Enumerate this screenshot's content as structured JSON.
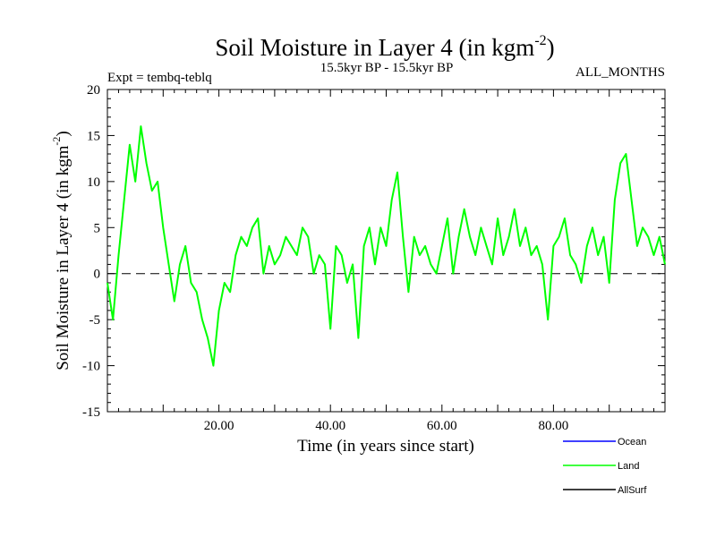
{
  "chart_data": {
    "type": "line",
    "title": "Soil Moisture in Layer 4 (in kgm",
    "title_sup": "-2",
    "title_close": ")",
    "subtitle": "15.5kyr BP - 15.5kyr BP",
    "expt_label": "Expt = tembq-teblq",
    "months_label": "ALL_MONTHS",
    "xlabel": "Time (in years since start)",
    "ylabel": "Soil Moisture in Layer 4 (in kgm",
    "ylabel_sup": "-2",
    "ylabel_close": ")",
    "xlim": [
      0,
      100
    ],
    "ylim": [
      -15,
      20
    ],
    "x_ticks": [
      20,
      40,
      60,
      80
    ],
    "x_tick_labels": [
      "20.00",
      "40.00",
      "60.00",
      "80.00"
    ],
    "y_ticks": [
      -15,
      -10,
      -5,
      0,
      5,
      10,
      15,
      20
    ],
    "y_tick_labels": [
      "-15",
      "-10",
      "-5",
      "0",
      "5",
      "10",
      "15",
      "20"
    ],
    "zero_line": true,
    "series": [
      {
        "name": "Land",
        "color": "#00ff00",
        "x": [
          0,
          1,
          2,
          3,
          4,
          5,
          6,
          7,
          8,
          9,
          10,
          11,
          12,
          13,
          14,
          15,
          16,
          17,
          18,
          19,
          20,
          21,
          22,
          23,
          24,
          25,
          26,
          27,
          28,
          29,
          30,
          31,
          32,
          33,
          34,
          35,
          36,
          37,
          38,
          39,
          40,
          41,
          42,
          43,
          44,
          45,
          46,
          47,
          48,
          49,
          50,
          51,
          52,
          53,
          54,
          55,
          56,
          57,
          58,
          59,
          60,
          61,
          62,
          63,
          64,
          65,
          66,
          67,
          68,
          69,
          70,
          71,
          72,
          73,
          74,
          75,
          76,
          77,
          78,
          79,
          80,
          81,
          82,
          83,
          84,
          85,
          86,
          87,
          88,
          89,
          90,
          91,
          92,
          93,
          94,
          95,
          96,
          97,
          98,
          99,
          100
        ],
        "values": [
          -1,
          -5,
          2,
          8,
          14,
          10,
          16,
          12,
          9,
          10,
          5,
          1,
          -3,
          1,
          3,
          -1,
          -2,
          -5,
          -7,
          -10,
          -4,
          -1,
          -2,
          2,
          4,
          3,
          5,
          6,
          0,
          3,
          1,
          2,
          4,
          3,
          2,
          5,
          4,
          0,
          2,
          1,
          -6,
          3,
          2,
          -1,
          1,
          -7,
          3,
          5,
          1,
          5,
          3,
          8,
          11,
          4,
          -2,
          4,
          2,
          3,
          1,
          0,
          3,
          6,
          0,
          4,
          7,
          4,
          2,
          5,
          3,
          1,
          6,
          2,
          4,
          7,
          3,
          5,
          2,
          3,
          1,
          -5,
          3,
          4,
          6,
          2,
          1,
          -1,
          3,
          5,
          2,
          4,
          -1,
          8,
          12,
          13,
          8,
          3,
          5,
          4,
          2,
          4,
          1
        ]
      }
    ],
    "legend": [
      {
        "name": "Ocean",
        "color": "#0000ff"
      },
      {
        "name": "Land",
        "color": "#00ff00"
      },
      {
        "name": "AllSurf",
        "color": "#000000"
      }
    ]
  }
}
